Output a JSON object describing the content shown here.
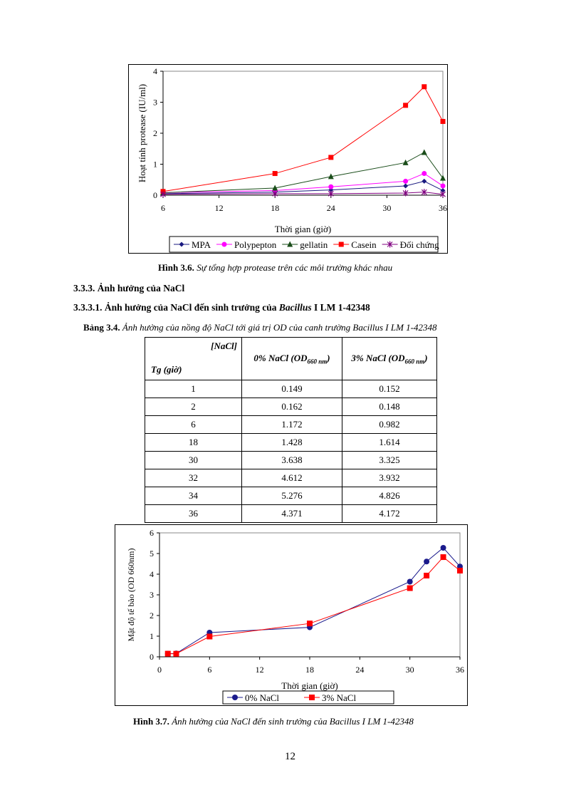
{
  "figure1": {
    "caption_label": "Hình 3.6.",
    "caption_text": "Sự tổng hợp protease trên các môi trường khác nhau"
  },
  "section": {
    "heading": "3.3.3. Ảnh hưởng của NaCl",
    "subheading_prefix": "3.3.3.1. Ảnh hưởng của NaCl đến sinh trưởng của ",
    "subheading_italic": "Bacillus",
    "subheading_suffix": " I LM 1-42348"
  },
  "table": {
    "caption_label": "Bảng 3.4.",
    "caption_text": "Ảnh hưởng của nồng độ NaCl tới giá trị OD của canh trường Bacillus I LM 1-42348",
    "corner_top": "[NaCl]",
    "corner_bottom": "Tg (giờ)",
    "col1": "0% NaCl (OD",
    "col1_sub": "660 nm",
    "col2": "3% NaCl (OD",
    "col2_sub": "660 nm",
    "close": ")",
    "rows": [
      [
        "1",
        "0.149",
        "0.152"
      ],
      [
        "2",
        "0.162",
        "0.148"
      ],
      [
        "6",
        "1.172",
        "0.982"
      ],
      [
        "18",
        "1.428",
        "1.614"
      ],
      [
        "30",
        "3.638",
        "3.325"
      ],
      [
        "32",
        "4.612",
        "3.932"
      ],
      [
        "34",
        "5.276",
        "4.826"
      ],
      [
        "36",
        "4.371",
        "4.172"
      ]
    ]
  },
  "figure2": {
    "caption_label": "Hình 3.7.",
    "caption_text": "Ảnh hưởng của NaCl đến sinh trưởng của Bacillus I LM 1-42348"
  },
  "page_number": "12",
  "chart_data": [
    {
      "type": "line",
      "xlabel": "Thời gian (giờ)",
      "ylabel": "Hoạt tính protease (IU/ml)",
      "xlim": [
        6,
        36
      ],
      "ylim": [
        0,
        4
      ],
      "xticks": [
        6,
        12,
        18,
        24,
        30,
        36
      ],
      "yticks": [
        0,
        1,
        2,
        3,
        4
      ],
      "grid": "horizontal dashed green",
      "legend": "bottom",
      "x": [
        6,
        18,
        24,
        32,
        34,
        36
      ],
      "series": [
        {
          "name": "MPA",
          "color": "#1a1a80",
          "marker": "diamond",
          "values": [
            0.05,
            0.1,
            0.17,
            0.3,
            0.45,
            0.15
          ]
        },
        {
          "name": "Polypepton",
          "color": "#ff00ff",
          "marker": "circle",
          "values": [
            0.08,
            0.15,
            0.27,
            0.45,
            0.7,
            0.3
          ]
        },
        {
          "name": "gellatin",
          "color": "#1a4d1a",
          "marker": "triangle",
          "values": [
            0.08,
            0.23,
            0.6,
            1.05,
            1.38,
            0.55
          ]
        },
        {
          "name": "Casein",
          "color": "#ff0000",
          "marker": "square",
          "values": [
            0.12,
            0.7,
            1.22,
            2.9,
            3.5,
            2.38
          ]
        },
        {
          "name": "Đối chứng",
          "color": "#800080",
          "marker": "star",
          "values": [
            0.03,
            0.05,
            0.05,
            0.07,
            0.1,
            0.03
          ]
        }
      ]
    },
    {
      "type": "line",
      "xlabel": "Thời gian (giờ)",
      "ylabel": "Mật độ tế bào (OD 660nm)",
      "xlim": [
        0,
        36
      ],
      "ylim": [
        0,
        6
      ],
      "xticks": [
        0,
        6,
        12,
        18,
        24,
        30,
        36
      ],
      "yticks": [
        0,
        1,
        2,
        3,
        4,
        5,
        6
      ],
      "grid": "none",
      "legend": "bottom",
      "x": [
        1,
        2,
        6,
        18,
        30,
        32,
        34,
        36
      ],
      "series": [
        {
          "name": "0% NaCl",
          "color": "#1a1a8c",
          "marker": "circle",
          "values": [
            0.149,
            0.162,
            1.172,
            1.428,
            3.638,
            4.612,
            5.276,
            4.371
          ]
        },
        {
          "name": "3% NaCl",
          "color": "#ff0000",
          "marker": "square",
          "values": [
            0.152,
            0.148,
            0.982,
            1.614,
            3.325,
            3.932,
            4.826,
            4.172
          ]
        }
      ]
    }
  ]
}
